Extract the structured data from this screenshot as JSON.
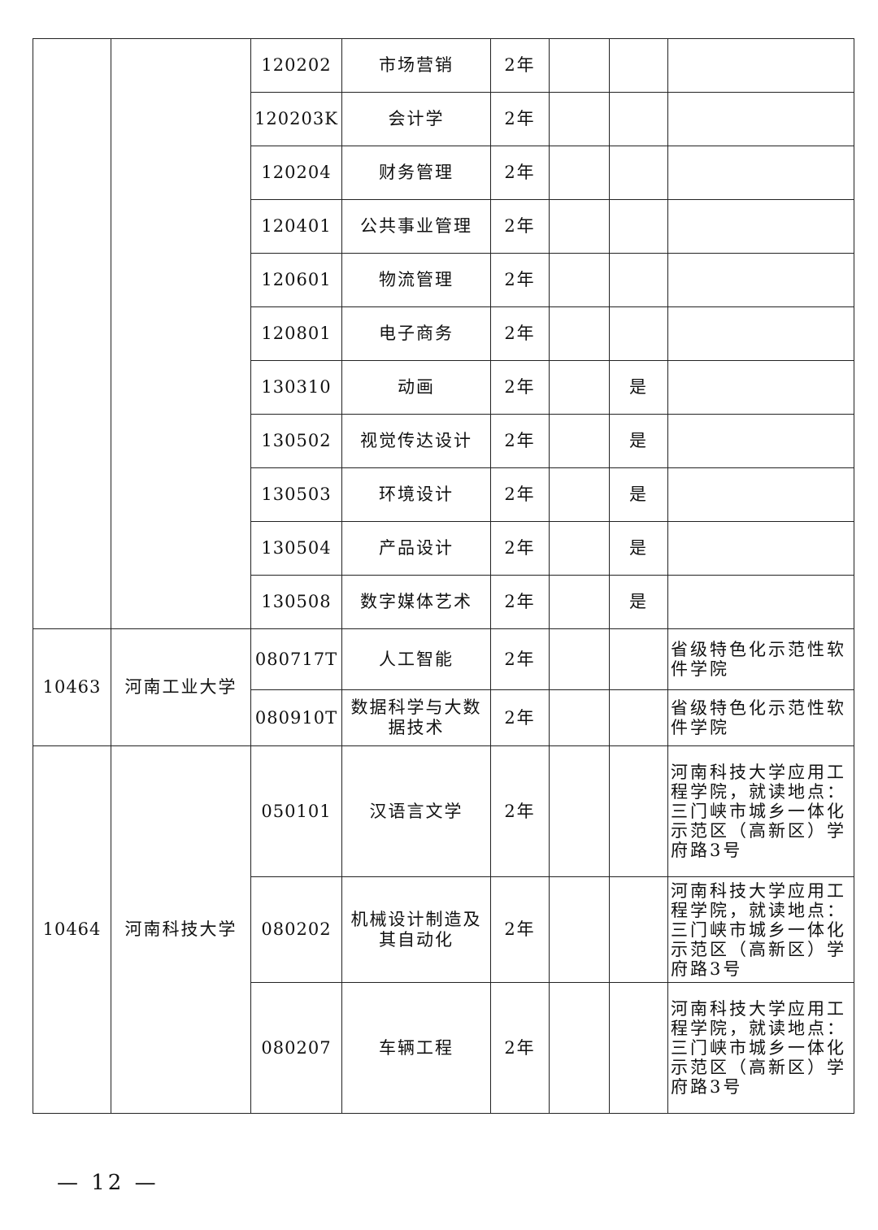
{
  "groups": [
    {
      "code": "",
      "name": "",
      "majors": [
        {
          "code": "120202",
          "name": "市场营销",
          "years": "2年",
          "col6": "",
          "col7": "",
          "note": ""
        },
        {
          "code": "120203K",
          "name": "会计学",
          "years": "2年",
          "col6": "",
          "col7": "",
          "note": ""
        },
        {
          "code": "120204",
          "name": "财务管理",
          "years": "2年",
          "col6": "",
          "col7": "",
          "note": ""
        },
        {
          "code": "120401",
          "name": "公共事业管理",
          "years": "2年",
          "col6": "",
          "col7": "",
          "note": ""
        },
        {
          "code": "120601",
          "name": "物流管理",
          "years": "2年",
          "col6": "",
          "col7": "",
          "note": ""
        },
        {
          "code": "120801",
          "name": "电子商务",
          "years": "2年",
          "col6": "",
          "col7": "",
          "note": ""
        },
        {
          "code": "130310",
          "name": "动画",
          "years": "2年",
          "col6": "",
          "col7": "是",
          "note": ""
        },
        {
          "code": "130502",
          "name": "视觉传达设计",
          "years": "2年",
          "col6": "",
          "col7": "是",
          "note": ""
        },
        {
          "code": "130503",
          "name": "环境设计",
          "years": "2年",
          "col6": "",
          "col7": "是",
          "note": ""
        },
        {
          "code": "130504",
          "name": "产品设计",
          "years": "2年",
          "col6": "",
          "col7": "是",
          "note": ""
        },
        {
          "code": "130508",
          "name": "数字媒体艺术",
          "years": "2年",
          "col6": "",
          "col7": "是",
          "note": ""
        }
      ]
    },
    {
      "code": "10463",
      "name": "河南工业大学",
      "majors": [
        {
          "code": "080717T",
          "name": "人工智能",
          "years": "2年",
          "col6": "",
          "col7": "",
          "note": "省级特色化示范性软件学院"
        },
        {
          "code": "080910T",
          "name": "数据科学与大数据技术",
          "years": "2年",
          "col6": "",
          "col7": "",
          "note": "省级特色化示范性软件学院"
        }
      ]
    },
    {
      "code": "10464",
      "name": "河南科技大学",
      "majors": [
        {
          "code": "050101",
          "name": "汉语言文学",
          "years": "2年",
          "col6": "",
          "col7": "",
          "note": "河南科技大学应用工程学院，就读地点：三门峡市城乡一体化示范区（高新区）学府路3号"
        },
        {
          "code": "080202",
          "name": "机械设计制造及其自动化",
          "years": "2年",
          "col6": "",
          "col7": "",
          "note": "河南科技大学应用工程学院，就读地点：三门峡市城乡一体化示范区（高新区）学府路3号"
        },
        {
          "code": "080207",
          "name": "车辆工程",
          "years": "2年",
          "col6": "",
          "col7": "",
          "note": "河南科技大学应用工程学院，就读地点：三门峡市城乡一体化示范区（高新区）学府路3号"
        }
      ]
    }
  ],
  "page_number": "— 12 —"
}
